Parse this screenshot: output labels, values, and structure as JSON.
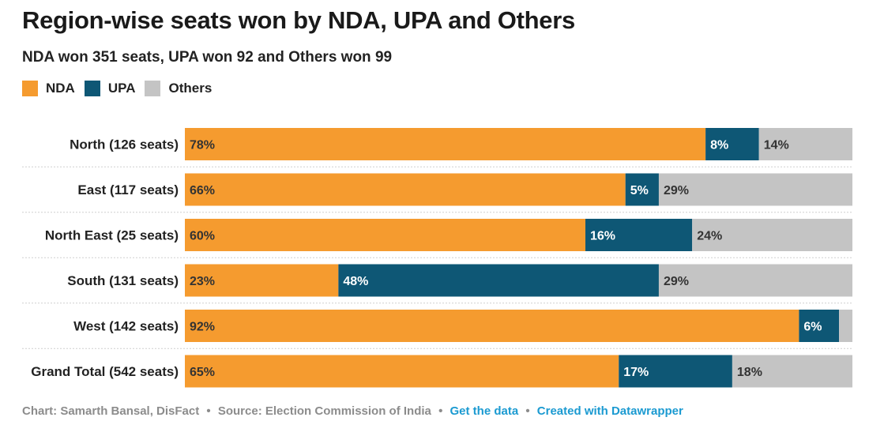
{
  "title": "Region-wise seats won by NDA, UPA and Others",
  "subtitle": "NDA won 351 seats, UPA won 92 and Others won 99",
  "legend": [
    {
      "label": "NDA",
      "color": "#f59b2f"
    },
    {
      "label": "UPA",
      "color": "#0e5775"
    },
    {
      "label": "Others",
      "color": "#c4c4c4"
    }
  ],
  "chart_data": {
    "type": "bar",
    "orientation": "horizontal",
    "stacked": true,
    "normalized_percent": true,
    "categories": [
      "North (126 seats)",
      "East (117 seats)",
      "North East (25 seats)",
      "South (131 seats)",
      "West (142 seats)",
      "Grand Total (542 seats)"
    ],
    "series": [
      {
        "name": "NDA",
        "color": "#f59b2f",
        "values": [
          78,
          66,
          60,
          23,
          92,
          65
        ],
        "labels": [
          "78%",
          "66%",
          "60%",
          "23%",
          "92%",
          "65%"
        ]
      },
      {
        "name": "UPA",
        "color": "#0e5775",
        "values": [
          8,
          5,
          16,
          48,
          6,
          17
        ],
        "labels": [
          "8%",
          "5%",
          "16%",
          "48%",
          "6%",
          "17%"
        ]
      },
      {
        "name": "Others",
        "color": "#c4c4c4",
        "values": [
          14,
          29,
          24,
          29,
          2,
          18
        ],
        "labels": [
          "14%",
          "29%",
          "24%",
          "29%",
          "",
          "18%"
        ]
      }
    ],
    "xlim": [
      0,
      100
    ],
    "title": "Region-wise seats won by NDA, UPA and Others",
    "subtitle": "NDA won 351 seats, UPA won 92 and Others won 99"
  },
  "footer": {
    "credit": "Chart: Samarth Bansal, DisFact",
    "source": "Source: Election Commission of India",
    "get_data": "Get the data",
    "created_with": "Created with Datawrapper",
    "separator": "•"
  }
}
